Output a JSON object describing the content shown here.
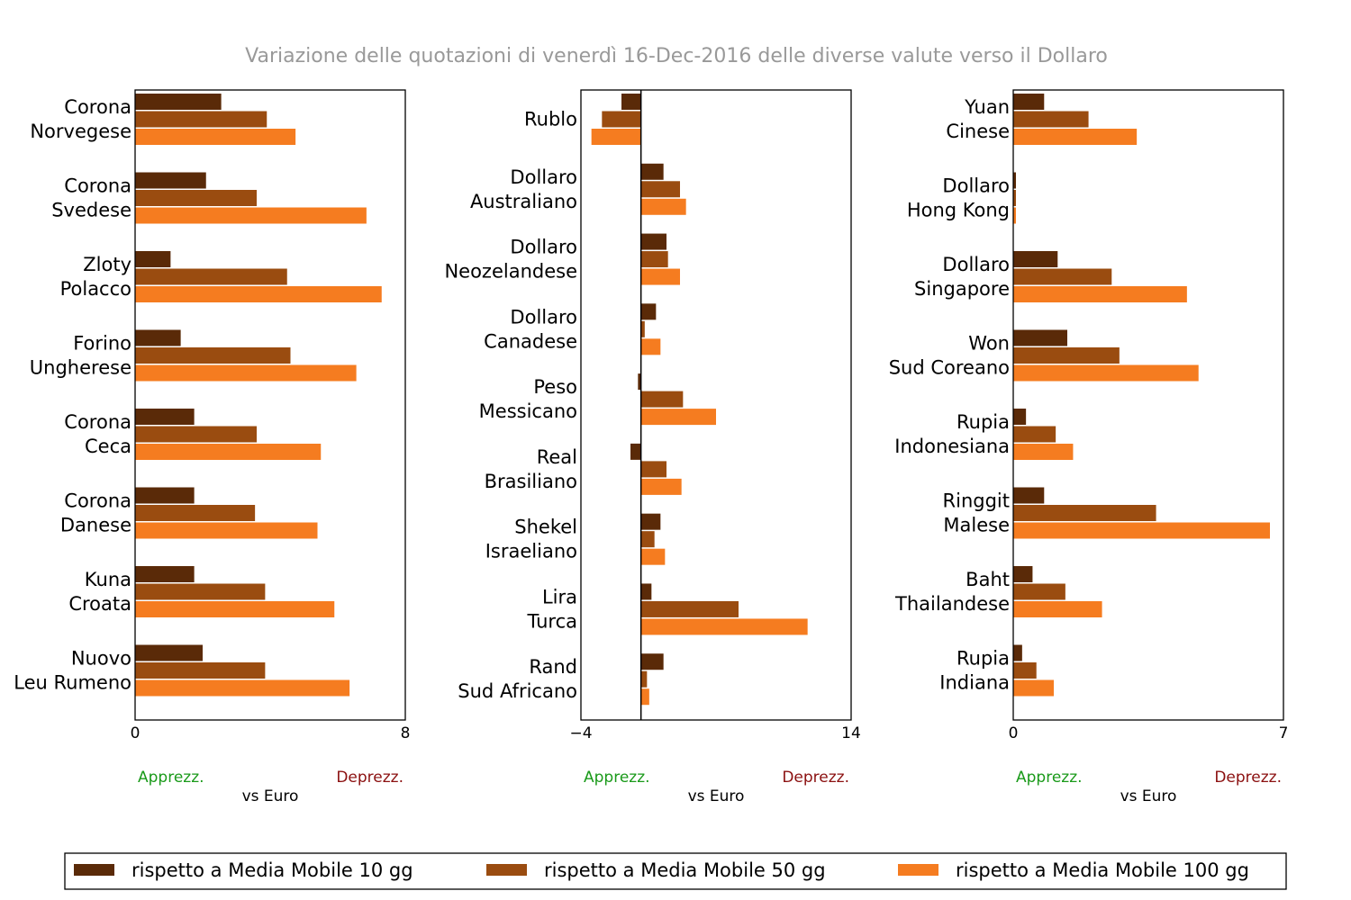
{
  "title": "Variazione delle quotazioni di venerdì 16-Dec-2016 delle diverse valute verso il Dollaro",
  "colors": {
    "ma10": "#5a2a08",
    "ma50": "#9a4c10",
    "ma100": "#f57c20"
  },
  "legend": [
    {
      "name": "rispetto a Media Mobile 10 gg",
      "color": "#5a2a08"
    },
    {
      "name": "rispetto a Media Mobile 50 gg",
      "color": "#9a4c10"
    },
    {
      "name": "rispetto a Media Mobile 100 gg",
      "color": "#f57c20"
    }
  ],
  "chart_data": [
    {
      "type": "bar",
      "orientation": "horizontal",
      "categories": [
        [
          "Corona",
          "Norvegese"
        ],
        [
          "Corona",
          "Svedese"
        ],
        [
          "Zloty",
          "Polacco"
        ],
        [
          "Forino",
          "Ungherese"
        ],
        [
          "Corona",
          "Ceca"
        ],
        [
          "Corona",
          "Danese"
        ],
        [
          "Kuna",
          "Croata"
        ],
        [
          "Nuovo",
          "Leu Rumeno"
        ]
      ],
      "series": [
        {
          "name": "rispetto a Media Mobile 10 gg",
          "values": [
            2.55,
            2.1,
            1.05,
            1.35,
            1.75,
            1.75,
            1.75,
            2.0
          ]
        },
        {
          "name": "rispetto a Media Mobile 50 gg",
          "values": [
            3.9,
            3.6,
            4.5,
            4.6,
            3.6,
            3.55,
            3.85,
            3.85
          ]
        },
        {
          "name": "rispetto a Media Mobile 100 gg",
          "values": [
            4.75,
            6.85,
            7.3,
            6.55,
            5.5,
            5.4,
            5.9,
            6.35
          ]
        }
      ],
      "xlim": [
        0,
        8
      ],
      "xticks": [
        "0",
        "8"
      ],
      "xlabel": "vs Euro",
      "left_note": "Apprezz.",
      "right_note": "Deprezz."
    },
    {
      "type": "bar",
      "orientation": "horizontal",
      "categories": [
        [
          "Rublo"
        ],
        [
          "Dollaro",
          "Australiano"
        ],
        [
          "Dollaro",
          "Neozelandese"
        ],
        [
          "Dollaro",
          "Canadese"
        ],
        [
          "Peso",
          "Messicano"
        ],
        [
          "Real",
          "Brasiliano"
        ],
        [
          "Shekel",
          "Israeliano"
        ],
        [
          "Lira",
          "Turca"
        ],
        [
          "Rand",
          "Sud Africano"
        ]
      ],
      "series": [
        {
          "name": "rispetto a Media Mobile 10 gg",
          "values": [
            -1.3,
            1.5,
            1.7,
            1.0,
            -0.2,
            -0.7,
            1.3,
            0.7,
            1.5
          ]
        },
        {
          "name": "rispetto a Media Mobile 50 gg",
          "values": [
            -2.6,
            2.6,
            1.8,
            0.25,
            2.8,
            1.7,
            0.9,
            6.5,
            0.4
          ]
        },
        {
          "name": "rispetto a Media Mobile 100 gg",
          "values": [
            -3.3,
            3.0,
            2.6,
            1.3,
            5.0,
            2.7,
            1.6,
            11.1,
            0.55
          ]
        }
      ],
      "xlim": [
        -4,
        14
      ],
      "xticks": [
        "−4",
        "14"
      ],
      "zero_line": 0,
      "xlabel": "vs Euro",
      "left_note": "Apprezz.",
      "right_note": "Deprezz."
    },
    {
      "type": "bar",
      "orientation": "horizontal",
      "categories": [
        [
          "Yuan",
          "Cinese"
        ],
        [
          "Dollaro",
          "Hong Kong"
        ],
        [
          "Dollaro",
          "Singapore"
        ],
        [
          "Won",
          "Sud Coreano"
        ],
        [
          "Rupia",
          "Indonesiana"
        ],
        [
          "Ringgit",
          "Malese"
        ],
        [
          "Baht",
          "Thailandese"
        ],
        [
          "Rupia",
          "Indiana"
        ]
      ],
      "series": [
        {
          "name": "rispetto a Media Mobile 10 gg",
          "values": [
            0.8,
            0.07,
            1.15,
            1.4,
            0.33,
            0.8,
            0.5,
            0.23
          ]
        },
        {
          "name": "rispetto a Media Mobile 50 gg",
          "values": [
            1.95,
            0.07,
            2.55,
            2.75,
            1.1,
            3.7,
            1.35,
            0.6
          ]
        },
        {
          "name": "rispetto a Media Mobile 100 gg",
          "values": [
            3.2,
            0.07,
            4.5,
            4.8,
            1.55,
            6.65,
            2.3,
            1.05
          ]
        }
      ],
      "xlim": [
        0,
        7
      ],
      "xticks": [
        "0",
        "7"
      ],
      "xlabel": "vs Euro",
      "left_note": "Apprezz.",
      "right_note": "Deprezz."
    }
  ]
}
